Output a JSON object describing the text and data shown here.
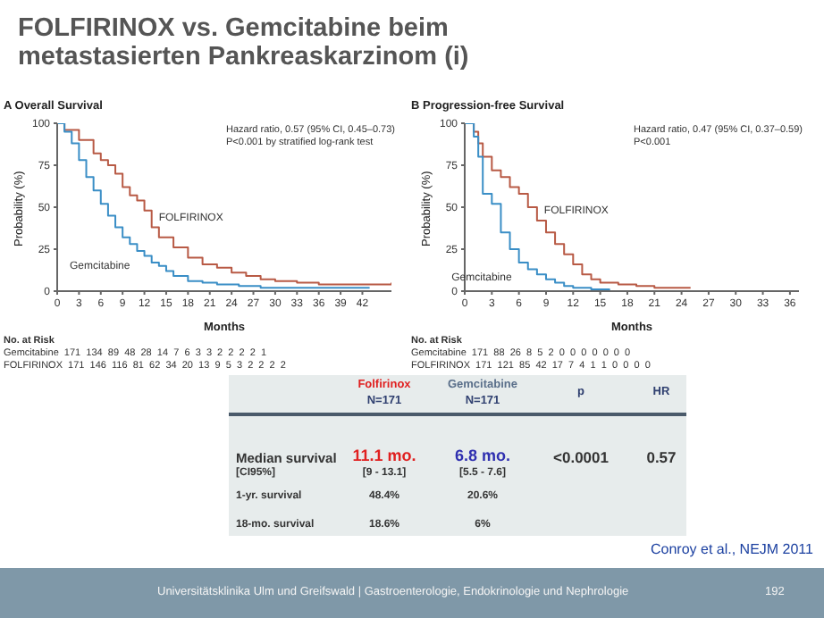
{
  "chart_data": [
    {
      "type": "step",
      "title": "A  Overall Survival",
      "xlabel": "Months",
      "ylabel": "Probability (%)",
      "xlim": [
        0,
        46
      ],
      "xticks": [
        0,
        3,
        6,
        9,
        12,
        15,
        18,
        21,
        24,
        27,
        30,
        33,
        36,
        39,
        42
      ],
      "ylim": [
        0,
        100
      ],
      "yticks": [
        0,
        25,
        50,
        75,
        100
      ],
      "series": [
        {
          "name": "FOLFIRINOX",
          "color": "#b85a45",
          "x": [
            0,
            1,
            3,
            5,
            6,
            7,
            8,
            9,
            10,
            11,
            12,
            13,
            14,
            16,
            18,
            20,
            22,
            24,
            26,
            28,
            30,
            33,
            36,
            40,
            45,
            46
          ],
          "values": [
            100,
            96,
            90,
            82,
            78,
            75,
            70,
            62,
            57,
            54,
            48,
            38,
            32,
            26,
            20,
            16,
            14,
            11,
            9,
            7,
            6,
            5,
            4,
            4,
            4,
            5
          ]
        },
        {
          "name": "Gemcitabine",
          "color": "#3a8ec6",
          "x": [
            0,
            1,
            2,
            3,
            4,
            5,
            6,
            7,
            8,
            9,
            10,
            11,
            12,
            13,
            14,
            15,
            16,
            18,
            20,
            22,
            25,
            28,
            33,
            40,
            43
          ],
          "values": [
            100,
            95,
            88,
            78,
            68,
            60,
            52,
            45,
            38,
            32,
            28,
            24,
            21,
            17,
            15,
            12,
            9,
            6,
            5,
            4,
            3,
            2,
            2,
            2,
            2
          ]
        }
      ],
      "annotations": [
        "Hazard ratio, 0.57 (95% CI, 0.45–0.73)",
        "P<0.001 by stratified log-rank test",
        "No. at Risk",
        "Gemcitabine  171  134  89  48  28  14  7  6  3  3  2  2  2  2  1",
        "FOLFIRINOX  171  146  116  81  62  34  20  13  9  5  3  2  2  2  2"
      ]
    },
    {
      "type": "step",
      "title": "B  Progression-free Survival",
      "xlabel": "Months",
      "ylabel": "Probability (%)",
      "xlim": [
        0,
        37
      ],
      "xticks": [
        0,
        3,
        6,
        9,
        12,
        15,
        18,
        21,
        24,
        27,
        30,
        33,
        36
      ],
      "ylim": [
        0,
        100
      ],
      "yticks": [
        0,
        25,
        50,
        75,
        100
      ],
      "series": [
        {
          "name": "FOLFIRINOX",
          "color": "#b85a45",
          "x": [
            0,
            1,
            1.5,
            2,
            3,
            4,
            5,
            6,
            7,
            8,
            9,
            10,
            11,
            12,
            13,
            14,
            15,
            17,
            19,
            21,
            23,
            25
          ],
          "values": [
            100,
            95,
            88,
            80,
            72,
            68,
            62,
            58,
            50,
            42,
            35,
            28,
            22,
            16,
            10,
            7,
            5,
            4,
            3,
            2,
            2,
            2
          ]
        },
        {
          "name": "Gemcitabine",
          "color": "#3a8ec6",
          "x": [
            0,
            1,
            1.5,
            2,
            3,
            4,
            5,
            6,
            7,
            8,
            9,
            10,
            11,
            12,
            14,
            16
          ],
          "values": [
            100,
            92,
            80,
            58,
            52,
            35,
            25,
            17,
            13,
            10,
            7,
            5,
            3,
            2,
            1,
            0
          ]
        }
      ],
      "annotations": [
        "Hazard ratio, 0.47 (95% CI, 0.37–0.59)",
        "P<0.001",
        "No. at Risk",
        "Gemcitabine  171  88  26  8  5  2  0  0  0  0  0  0  0",
        "FOLFIRINOX  171  121  85  42  17  7  4  1  1  0  0  0  0"
      ]
    },
    {
      "type": "other",
      "title": "FOLFIRINOX vs. Gemcitabine beim metastasierten Pankreaskarzinom (i)",
      "annotations": [
        "Folfirinox",
        "N=171",
        "Gemcitabine",
        "N=171",
        "p",
        "HR",
        "Median survival",
        "[CI95%]",
        "11.1 mo.",
        "[9 - 13.1]",
        "6.8 mo.",
        "[5.5 - 7.6]",
        "<0.0001",
        "0.57",
        "1-yr. survival",
        "48.4%",
        "20.6%",
        "18-mo. survival",
        "18.6%",
        "6%",
        "Conroy et al., NEJM 2011",
        "Universitätsklinika Ulm und Greifswald | Gastroenterologie, Endokrinologie und Nephrologie",
        "192"
      ]
    }
  ]
}
